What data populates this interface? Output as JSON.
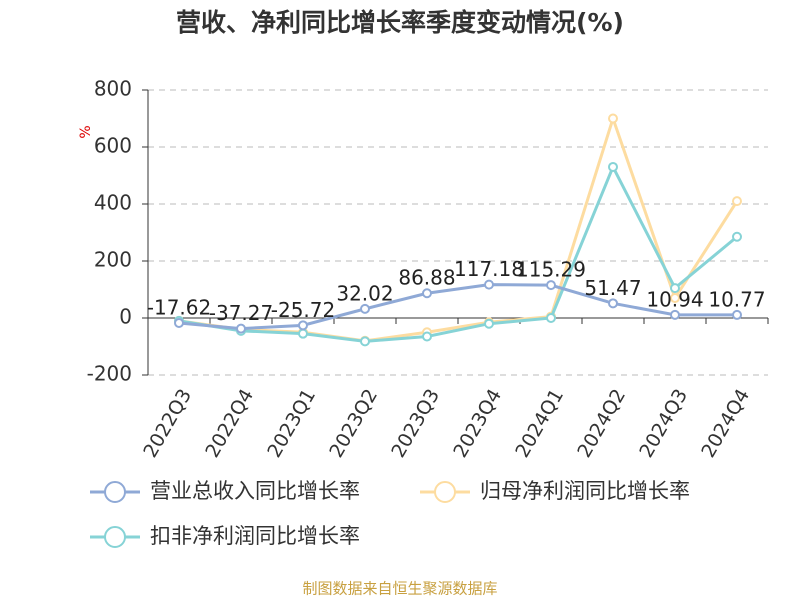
{
  "chart_data": {
    "type": "line",
    "title": "营收、净利同比增长率季度变动情况(%)",
    "y_label": "%",
    "categories": [
      "2022Q3",
      "2022Q4",
      "2023Q1",
      "2023Q2",
      "2023Q3",
      "2023Q4",
      "2024Q1",
      "2024Q2",
      "2024Q3",
      "2024Q4"
    ],
    "series": [
      {
        "name": "营业总收入同比增长率",
        "color": "#8fa9d6",
        "values": [
          -17.62,
          -37.27,
          -25.72,
          32.02,
          86.88,
          117.18,
          115.29,
          51.47,
          10.94,
          10.77
        ]
      },
      {
        "name": "归母净利润同比增长率",
        "color": "#fddca0",
        "values": [
          -10,
          -40,
          -50,
          -80,
          -50,
          -15,
          5,
          700,
          70,
          410
        ]
      },
      {
        "name": "扣非净利润同比增长率",
        "color": "#86d3d6",
        "values": [
          -10,
          -45,
          -55,
          -82,
          -65,
          -20,
          0,
          530,
          105,
          285
        ]
      }
    ],
    "ylim": [
      -200,
      800
    ],
    "yticks": [
      -200,
      0,
      200,
      400,
      600,
      800
    ],
    "grid": true,
    "source": "制图数据来自恒生聚源数据库"
  }
}
